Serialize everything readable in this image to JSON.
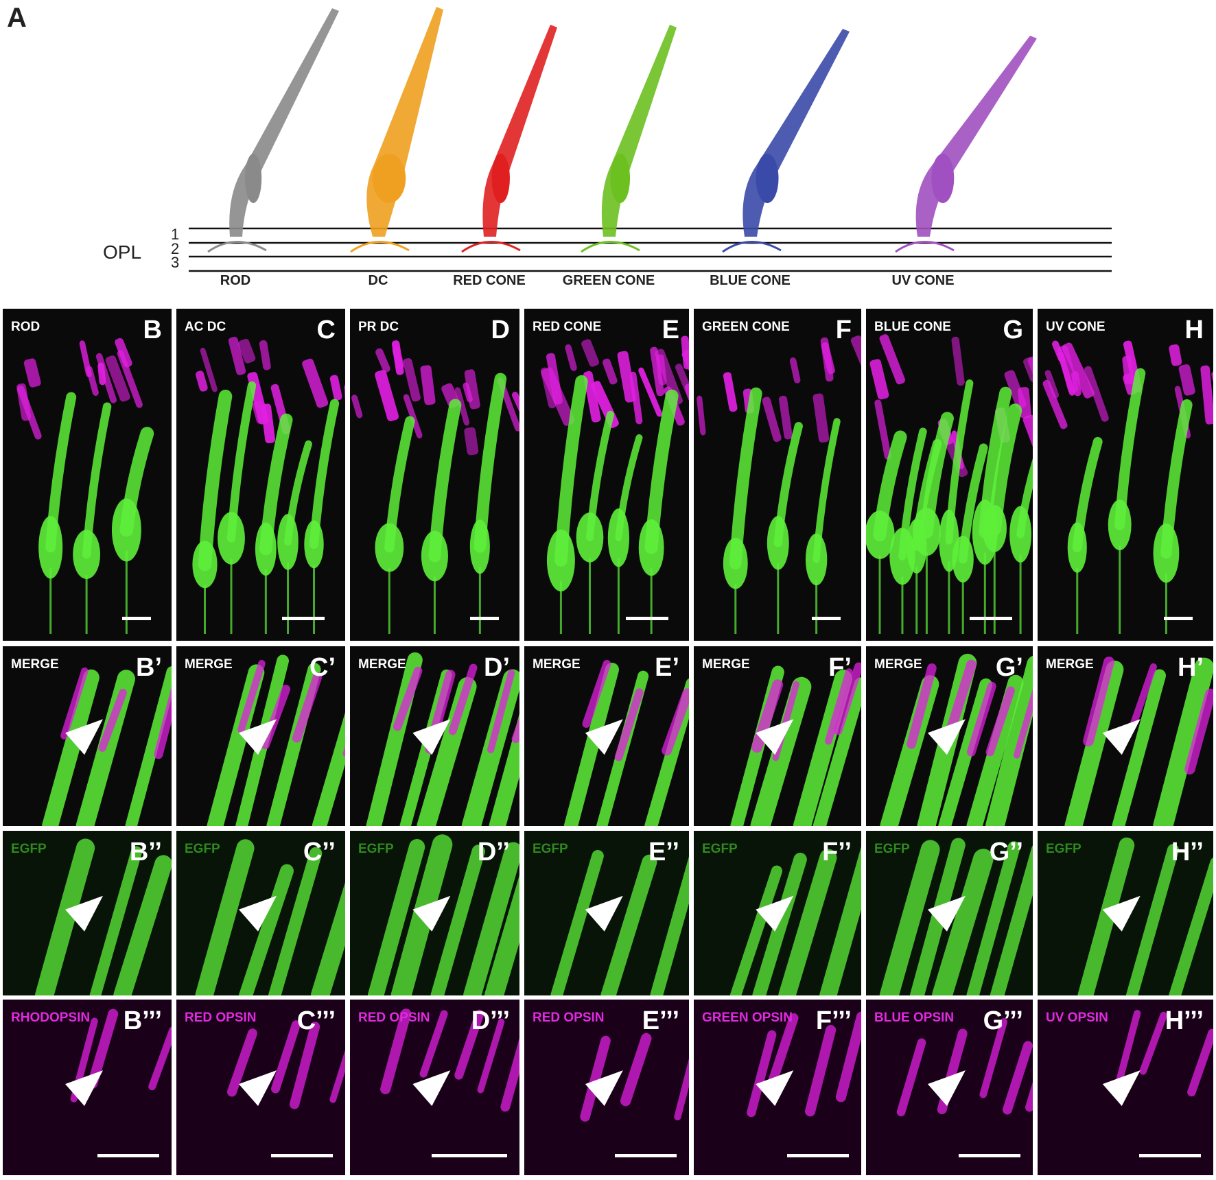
{
  "panel_a": {
    "letter": "A",
    "opl_label": "OPL",
    "layers": [
      "1",
      "2",
      "3"
    ],
    "cells": [
      {
        "name": "ROD",
        "color": "#8a8a8a"
      },
      {
        "name": "DC",
        "color": "#f0a020"
      },
      {
        "name": "RED CONE",
        "color": "#e02020"
      },
      {
        "name": "GREEN CONE",
        "color": "#6cc020"
      },
      {
        "name": "BLUE CONE",
        "color": "#3a4aa8"
      },
      {
        "name": "UV CONE",
        "color": "#a050c0"
      }
    ]
  },
  "columns": [
    {
      "title": "ROD",
      "letters": [
        "B",
        "B’",
        "B’’",
        "B’’’"
      ],
      "marker": "RHODOPSIN"
    },
    {
      "title": "AC DC",
      "letters": [
        "C",
        "C’",
        "C’’",
        "C’’’"
      ],
      "marker": "RED OPSIN"
    },
    {
      "title": "PR DC",
      "letters": [
        "D",
        "D’",
        "D’’",
        "D’’’"
      ],
      "marker": "RED OPSIN"
    },
    {
      "title": "RED CONE",
      "letters": [
        "E",
        "E’",
        "E’’",
        "E’’’"
      ],
      "marker": "RED OPSIN"
    },
    {
      "title": "GREEN CONE",
      "letters": [
        "F",
        "F’",
        "F’’",
        "F’’’"
      ],
      "marker": "GREEN OPSIN"
    },
    {
      "title": "BLUE CONE",
      "letters": [
        "G",
        "G’",
        "G’’",
        "G’’’"
      ],
      "marker": "BLUE OPSIN"
    },
    {
      "title": "UV CONE",
      "letters": [
        "H",
        "H’",
        "H’’",
        "H’’’"
      ],
      "marker": "UV OPSIN"
    }
  ],
  "row_labels": {
    "merge": "MERGE",
    "egfp": "EGFP"
  },
  "colors": {
    "egfp": "#5ef03a",
    "opsin": "#e020e0",
    "background": "#0a0a0a"
  }
}
